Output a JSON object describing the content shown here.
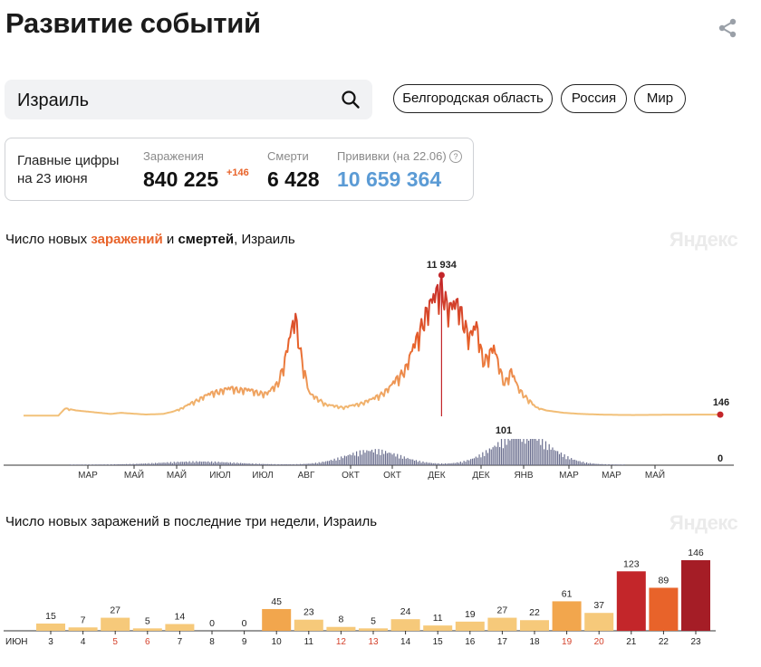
{
  "header": {
    "title": "Развитие событий",
    "share_icon": "share-icon"
  },
  "search": {
    "value": "Израиль",
    "icon": "search-icon"
  },
  "region_chips": [
    {
      "label": "Белгородская область"
    },
    {
      "label": "Россия"
    },
    {
      "label": "Мир"
    }
  ],
  "stats": {
    "heading_line1": "Главные цифры",
    "heading_line2": "на 23 июня",
    "infections": {
      "label": "Заражения",
      "value": "840 225",
      "delta": "+146"
    },
    "deaths": {
      "label": "Смерти",
      "value": "6 428"
    },
    "vaccinations": {
      "label": "Прививки (на 22.06)",
      "value": "10 659 364"
    },
    "help_glyph": "?",
    "colors": {
      "delta": "#e8632a",
      "vaccinations": "#5b9bd5"
    }
  },
  "trend_chart_title": {
    "part1": "Число новых ",
    "part2": "заражений",
    "part3": " и ",
    "part4": "смертей",
    "part5": ", Израиль"
  },
  "bar_chart_title": "Число новых заражений в последние три недели, Израиль",
  "watermark": "Яндекс",
  "chart_data": [
    {
      "type": "line",
      "title": "Число новых заражений и смертей, Израиль",
      "x_tick_labels": [
        "МАР",
        "МАЙ",
        "МАЙ",
        "ИЮЛ",
        "ИЮЛ",
        "АВГ",
        "ОКТ",
        "ОКТ",
        "ДЕК",
        "ДЕК",
        "ЯНВ",
        "МАР",
        "МАР",
        "МАЙ"
      ],
      "series": [
        {
          "name": "заражения",
          "x": [
            0,
            0.1,
            0.12,
            0.15,
            0.2,
            0.25,
            0.28,
            0.3,
            0.35,
            0.4,
            0.43,
            0.46,
            0.5,
            0.55,
            0.6,
            0.65,
            0.7,
            0.73,
            0.75,
            0.78,
            0.8,
            0.82,
            0.85,
            0.87,
            0.9,
            0.92,
            0.95,
            1.0,
            1.05,
            1.1,
            1.13,
            1.15,
            1.18,
            1.2,
            1.22,
            1.25,
            1.28,
            1.3,
            1.32,
            1.35,
            1.38,
            1.4,
            1.42,
            1.45,
            1.47,
            1.5,
            1.55,
            1.6,
            1.65,
            1.7,
            1.75,
            1.8,
            1.85,
            1.9,
            1.95,
            2.0
          ],
          "values": [
            60,
            60,
            700,
            500,
            350,
            200,
            300,
            250,
            150,
            200,
            400,
            800,
            1500,
            2200,
            2500,
            2300,
            2000,
            3000,
            5000,
            9000,
            5000,
            2000,
            1500,
            1000,
            900,
            800,
            1000,
            1500,
            2500,
            4500,
            7000,
            9000,
            10500,
            11934,
            9500,
            10000,
            7000,
            8000,
            5000,
            6000,
            3000,
            4000,
            2500,
            1500,
            800,
            500,
            300,
            200,
            150,
            120,
            110,
            120,
            130,
            140,
            146,
            146
          ],
          "peak_label": "11 934",
          "last_label": "146",
          "color": "#e8a25a"
        },
        {
          "name": "смерти",
          "peak_label": "101",
          "last_label": "0",
          "color": "#6b6f8f"
        }
      ]
    },
    {
      "type": "bar",
      "title": "Число новых заражений в последние три недели, Израиль",
      "month_label": "ИЮН",
      "categories": [
        "3",
        "4",
        "5",
        "6",
        "7",
        "8",
        "9",
        "10",
        "11",
        "12",
        "13",
        "14",
        "15",
        "16",
        "17",
        "18",
        "19",
        "20",
        "21",
        "22",
        "23"
      ],
      "values": [
        15,
        7,
        27,
        5,
        14,
        0,
        0,
        45,
        23,
        8,
        5,
        24,
        11,
        19,
        27,
        22,
        61,
        37,
        123,
        89,
        146
      ],
      "weekend_days": [
        "5",
        "6",
        "12",
        "13",
        "19",
        "20"
      ],
      "colors": {
        "low": "#f6c97a",
        "mid": "#f2a64d",
        "high": "#e8632a",
        "very_high": "#c3262a",
        "max": "#a51d26",
        "weekend_label": "#d4412b"
      }
    }
  ]
}
